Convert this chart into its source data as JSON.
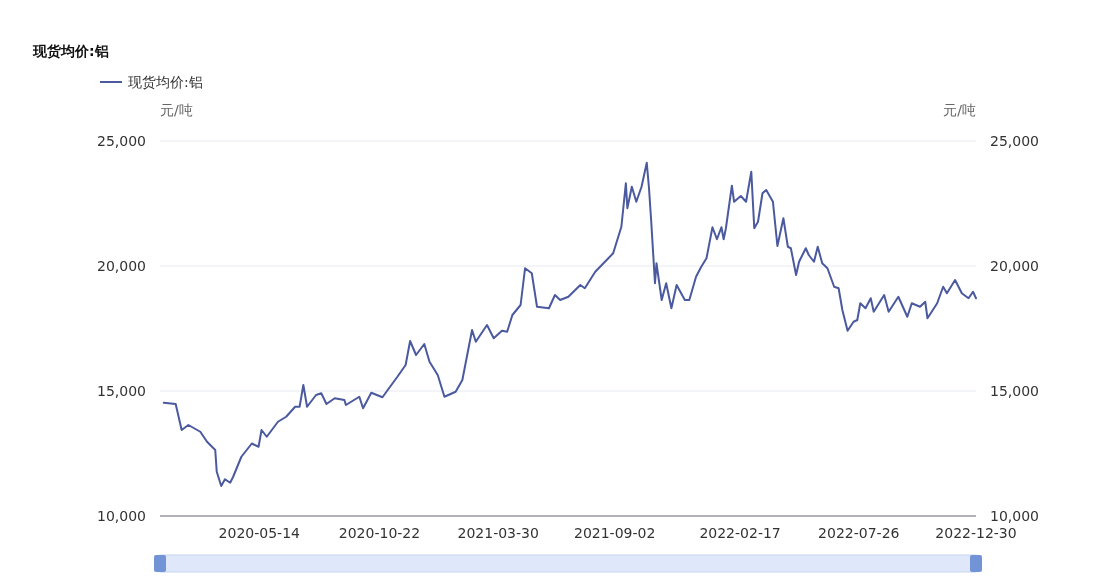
{
  "chart_data": {
    "type": "line",
    "title": "现货均价:铝",
    "ylabel": "元/吨",
    "y2label": "元/吨",
    "x": [
      "2020-01-07",
      "2020-01-23",
      "2020-01-31",
      "2020-02-09",
      "2020-02-25",
      "2020-03-05",
      "2020-03-16",
      "2020-03-18",
      "2020-03-24",
      "2020-03-29",
      "2020-04-05",
      "2020-04-09",
      "2020-04-20",
      "2020-05-04",
      "2020-05-13",
      "2020-05-17",
      "2020-05-24",
      "2020-06-08",
      "2020-06-19",
      "2020-07-01",
      "2020-07-07",
      "2020-07-12",
      "2020-07-17",
      "2020-07-29",
      "2020-08-05",
      "2020-08-12",
      "2020-08-23",
      "2020-09-05",
      "2020-09-07",
      "2020-09-25",
      "2020-09-30",
      "2020-10-11",
      "2020-10-26",
      "2020-11-02",
      "2020-11-15",
      "2020-11-26",
      "2020-12-02",
      "2020-12-10",
      "2020-12-21",
      "2020-12-28",
      "2021-01-08",
      "2021-01-17",
      "2021-02-01",
      "2021-02-10",
      "2021-02-23",
      "2021-02-28",
      "2021-03-15",
      "2021-03-24",
      "2021-04-04",
      "2021-04-11",
      "2021-04-18",
      "2021-04-29",
      "2021-05-05",
      "2021-05-14",
      "2021-05-21",
      "2021-06-06",
      "2021-06-14",
      "2021-06-21",
      "2021-07-02",
      "2021-07-18",
      "2021-07-24",
      "2021-08-07",
      "2021-08-20",
      "2021-08-31",
      "2021-09-11",
      "2021-09-17",
      "2021-09-19",
      "2021-09-25",
      "2021-10-01",
      "2021-10-08",
      "2021-10-15",
      "2021-10-18",
      "2021-10-21",
      "2021-10-26",
      "2021-10-28",
      "2021-11-04",
      "2021-11-10",
      "2021-11-17",
      "2021-11-24",
      "2021-12-05",
      "2021-12-11",
      "2021-12-20",
      "2021-12-27",
      "2022-01-03",
      "2022-01-11",
      "2022-01-17",
      "2022-01-23",
      "2022-01-26",
      "2022-01-29",
      "2022-02-06",
      "2022-02-09",
      "2022-02-18",
      "2022-02-25",
      "2022-03-04",
      "2022-03-08",
      "2022-03-13",
      "2022-03-19",
      "2022-03-24",
      "2022-04-02",
      "2022-04-08",
      "2022-04-16",
      "2022-04-22",
      "2022-04-26",
      "2022-05-03",
      "2022-05-07",
      "2022-05-16",
      "2022-05-20",
      "2022-05-27",
      "2022-06-01",
      "2022-06-07",
      "2022-06-14",
      "2022-06-23",
      "2022-06-29",
      "2022-07-04",
      "2022-07-11",
      "2022-07-19",
      "2022-07-24",
      "2022-07-28",
      "2022-08-04",
      "2022-08-11",
      "2022-08-15",
      "2022-08-29",
      "2022-09-04",
      "2022-09-17",
      "2022-09-29",
      "2022-10-05",
      "2022-10-16",
      "2022-10-23",
      "2022-10-26",
      "2022-11-08",
      "2022-11-16",
      "2022-11-21",
      "2022-12-02",
      "2022-12-11",
      "2022-12-20",
      "2022-12-26",
      "2022-12-30"
    ],
    "series": [
      {
        "name": "现货均价:铝",
        "color": "#4b5a9e",
        "values": [
          14530,
          14480,
          13440,
          13640,
          13370,
          12970,
          12640,
          11770,
          11200,
          11470,
          11330,
          11570,
          12370,
          12900,
          12770,
          13440,
          13170,
          13770,
          13970,
          14370,
          14370,
          15240,
          14370,
          14840,
          14910,
          14480,
          14710,
          14640,
          14440,
          14770,
          14310,
          14930,
          14750,
          15040,
          15570,
          16040,
          17000,
          16440,
          16880,
          16170,
          15640,
          14770,
          14970,
          15440,
          17440,
          16970,
          17640,
          17110,
          17410,
          17370,
          18040,
          18440,
          19910,
          19710,
          18370,
          18310,
          18840,
          18640,
          18770,
          19240,
          19110,
          19770,
          20170,
          20510,
          21570,
          23310,
          22310,
          23170,
          22570,
          23170,
          24130,
          23110,
          21770,
          19310,
          20110,
          18640,
          19310,
          18310,
          19240,
          18640,
          18640,
          19570,
          19970,
          20310,
          21550,
          21070,
          21550,
          21070,
          21510,
          23210,
          22570,
          22800,
          22570,
          23770,
          21510,
          21770,
          22910,
          23040,
          22570,
          20800,
          21910,
          20770,
          20710,
          19640,
          20170,
          20710,
          20440,
          20170,
          20770,
          20110,
          19910,
          19170,
          19110,
          18240,
          17410,
          17770,
          17840,
          18510,
          18310,
          18710,
          18170,
          18840,
          18170,
          18770,
          17970,
          18510,
          18370,
          18570,
          17910,
          18510,
          19170,
          18910,
          19440,
          18910,
          18710,
          18970,
          18710
        ]
      }
    ],
    "xlim": [
      "2020-01-02",
      "2022-12-30"
    ],
    "xticks": [
      "2020-05-14",
      "2020-10-22",
      "2021-03-30",
      "2021-09-02",
      "2022-02-17",
      "2022-07-26",
      "2022-12-30"
    ],
    "ylim": [
      10000,
      25000
    ],
    "yticks": [
      {
        "value": 10000,
        "label": "10,000"
      },
      {
        "value": 15000,
        "label": "15,000"
      },
      {
        "value": 20000,
        "label": "20,000"
      },
      {
        "value": 25000,
        "label": "25,000"
      }
    ],
    "y2lim": [
      10000,
      25000
    ],
    "y2ticks": [
      {
        "value": 10000,
        "label": "10,000"
      },
      {
        "value": 15000,
        "label": "15,000"
      },
      {
        "value": 20000,
        "label": "20,000"
      },
      {
        "value": 25000,
        "label": "25,000"
      }
    ],
    "grid": "y",
    "legend": "top left"
  }
}
